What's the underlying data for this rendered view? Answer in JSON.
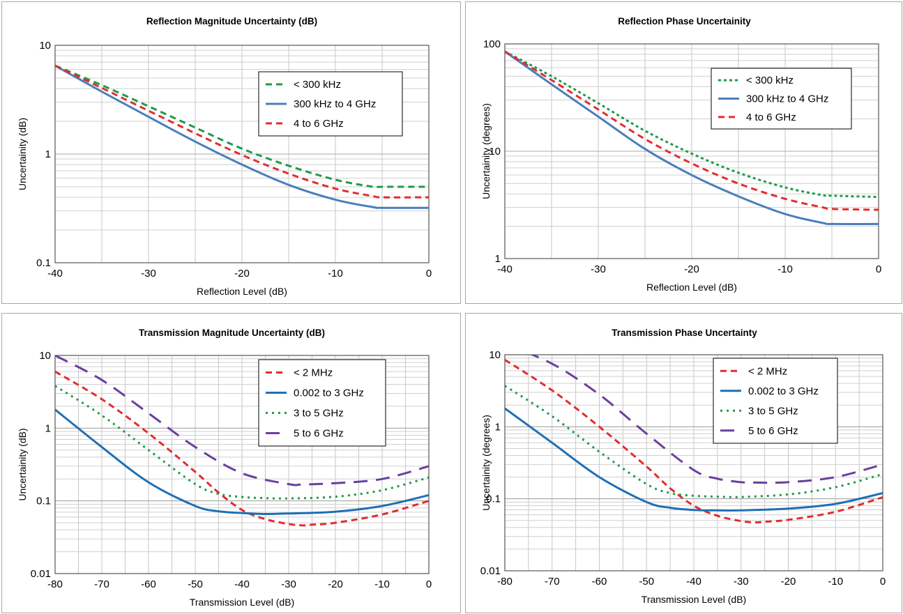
{
  "chart_data": [
    {
      "type": "line",
      "title": "Reflection Magnitude Uncertainty (dB)",
      "xlabel": "Reflection Level (dB)",
      "ylabel": "Uncertainity (dB)",
      "xlim": [
        -40,
        0
      ],
      "ylim": [
        0.1,
        10
      ],
      "yscale": "log",
      "grid": true,
      "legend_position": "upper-right",
      "x_ticks": [
        -40,
        -30,
        -20,
        -10,
        0
      ],
      "y_ticks": [
        0.1,
        1,
        10
      ],
      "x_tick_labels": [
        "-40",
        "-30",
        "-20",
        "-10",
        "0"
      ],
      "y_tick_labels": [
        "0.1",
        "1",
        "10"
      ],
      "series": [
        {
          "name": "< 300 kHz",
          "color": "#1f9a48",
          "dash": "9,6",
          "x": [
            -40,
            -35,
            -30,
            -25,
            -20,
            -15,
            -10,
            -6,
            -5,
            0
          ],
          "y": [
            6.5,
            4.3,
            2.75,
            1.75,
            1.12,
            0.78,
            0.58,
            0.5,
            0.5,
            0.5
          ]
        },
        {
          "name": "300 kHz to 4 GHz",
          "color": "#4a7ebb",
          "dash": "",
          "x": [
            -40,
            -35,
            -30,
            -25,
            -20,
            -15,
            -10,
            -6,
            -5,
            0
          ],
          "y": [
            6.5,
            3.75,
            2.2,
            1.3,
            0.8,
            0.52,
            0.38,
            0.325,
            0.32,
            0.32
          ]
        },
        {
          "name": "4 to 6 GHz",
          "color": "#e32c2c",
          "dash": "9,6",
          "x": [
            -40,
            -35,
            -30,
            -25,
            -20,
            -15,
            -10,
            -6,
            -5,
            0
          ],
          "y": [
            6.5,
            4.05,
            2.5,
            1.55,
            0.98,
            0.66,
            0.48,
            0.41,
            0.4,
            0.4
          ]
        }
      ]
    },
    {
      "type": "line",
      "title": "Reflection Phase Uncertainity",
      "xlabel": "Reflection Level (dB)",
      "ylabel": "Uncertainity (degrees)",
      "xlim": [
        -40,
        0
      ],
      "ylim": [
        1,
        100
      ],
      "yscale": "log",
      "grid": true,
      "legend_position": "upper-right",
      "x_ticks": [
        -40,
        -30,
        -20,
        -10,
        0
      ],
      "y_ticks": [
        1,
        10,
        100
      ],
      "x_tick_labels": [
        "-40",
        "-30",
        "-20",
        "-10",
        "0"
      ],
      "y_tick_labels": [
        "1",
        "10",
        "100"
      ],
      "series": [
        {
          "name": "< 300 kHz",
          "color": "#1f9a48",
          "dash": "4,4",
          "x": [
            -40,
            -35,
            -30,
            -25,
            -20,
            -15,
            -10,
            -6,
            -5,
            0
          ],
          "y": [
            85,
            50,
            28,
            15.5,
            9.5,
            6.3,
            4.6,
            3.9,
            3.85,
            3.75
          ]
        },
        {
          "name": "300 kHz to 4 GHz",
          "color": "#4a7ebb",
          "dash": "",
          "x": [
            -40,
            -35,
            -30,
            -25,
            -20,
            -15,
            -10,
            -6,
            -5,
            0
          ],
          "y": [
            85,
            42,
            21,
            10.5,
            6,
            3.8,
            2.6,
            2.15,
            2.1,
            2.1
          ]
        },
        {
          "name": "4 to 6 GHz",
          "color": "#e32c2c",
          "dash": "9,6",
          "x": [
            -40,
            -35,
            -30,
            -25,
            -20,
            -15,
            -10,
            -6,
            -5,
            0
          ],
          "y": [
            85,
            46,
            24.5,
            13,
            7.7,
            5,
            3.6,
            3,
            2.9,
            2.85
          ]
        }
      ]
    },
    {
      "type": "line",
      "title": "Transmission Magnitude Uncertainty (dB)",
      "xlabel": "Transmission Level (dB)",
      "ylabel": "Uncertainity (dB)",
      "xlim": [
        -80,
        0
      ],
      "ylim": [
        0.01,
        10
      ],
      "yscale": "log",
      "grid": true,
      "legend_position": "upper-right",
      "x_ticks": [
        -80,
        -70,
        -60,
        -50,
        -40,
        -30,
        -20,
        -10,
        0
      ],
      "y_ticks": [
        0.01,
        0.1,
        1,
        10
      ],
      "x_tick_labels": [
        "-80",
        "-70",
        "-60",
        "-50",
        "-40",
        "-30",
        "-20",
        "-10",
        "0"
      ],
      "y_tick_labels": [
        "0.01",
        "0.1",
        "1",
        "10"
      ],
      "series": [
        {
          "name": "< 2 MHz",
          "color": "#e32c2c",
          "dash": "9,6",
          "x": [
            -80,
            -70,
            -60,
            -50,
            -45,
            -40,
            -35,
            -30,
            -27,
            -25,
            -20,
            -10,
            0
          ],
          "y": [
            6,
            2.5,
            0.85,
            0.25,
            0.13,
            0.075,
            0.056,
            0.048,
            0.046,
            0.047,
            0.05,
            0.065,
            0.1
          ]
        },
        {
          "name": "0.002 to 3 GHz",
          "color": "#1f6fb4",
          "dash": "",
          "x": [
            -80,
            -70,
            -60,
            -50,
            -45,
            -40,
            -35,
            -30,
            -20,
            -10,
            0
          ],
          "y": [
            1.8,
            0.55,
            0.18,
            0.085,
            0.072,
            0.068,
            0.066,
            0.067,
            0.071,
            0.085,
            0.12
          ]
        },
        {
          "name": "3 to 5 GHz",
          "color": "#1f9a48",
          "dash": "3,6",
          "x": [
            -80,
            -70,
            -60,
            -50,
            -45,
            -40,
            -35,
            -30,
            -20,
            -10,
            0
          ],
          "y": [
            3.8,
            1.5,
            0.5,
            0.17,
            0.125,
            0.113,
            0.109,
            0.108,
            0.114,
            0.14,
            0.21
          ]
        },
        {
          "name": "5 to 6 GHz",
          "color": "#6a3f9e",
          "dash": "20,12",
          "x": [
            -80,
            -70,
            -60,
            -50,
            -40,
            -30,
            -27,
            -20,
            -10,
            0
          ],
          "y": [
            10,
            4.6,
            1.6,
            0.55,
            0.24,
            0.17,
            0.168,
            0.175,
            0.2,
            0.3
          ]
        }
      ]
    },
    {
      "type": "line",
      "title": "Transmission Phase Uncertainty",
      "xlabel": "Transmission Level (dB)",
      "ylabel": "Uncertainity (degrees)",
      "xlim": [
        -80,
        0
      ],
      "ylim": [
        0.01,
        10
      ],
      "yscale": "log",
      "grid": true,
      "legend_position": "upper-right",
      "x_ticks": [
        -80,
        -70,
        -60,
        -50,
        -40,
        -30,
        -20,
        -10,
        0
      ],
      "y_ticks": [
        0.01,
        0.1,
        1,
        10
      ],
      "x_tick_labels": [
        "-80",
        "-70",
        "-60",
        "-50",
        "-40",
        "-30",
        "-20",
        "-10",
        "0"
      ],
      "y_tick_labels": [
        "0.01",
        "0.1",
        "1",
        "10"
      ],
      "series": [
        {
          "name": "< 2 MHz",
          "color": "#e32c2c",
          "dash": "9,6",
          "x": [
            -80,
            -70,
            -60,
            -50,
            -45,
            -40,
            -35,
            -30,
            -27,
            -25,
            -20,
            -10,
            0
          ],
          "y": [
            8.5,
            3.2,
            1.0,
            0.28,
            0.14,
            0.08,
            0.058,
            0.049,
            0.047,
            0.048,
            0.051,
            0.066,
            0.105
          ]
        },
        {
          "name": "0.002 to 3 GHz",
          "color": "#1f6fb4",
          "dash": "",
          "x": [
            -80,
            -70,
            -60,
            -50,
            -45,
            -40,
            -35,
            -30,
            -20,
            -10,
            0
          ],
          "y": [
            1.8,
            0.6,
            0.2,
            0.09,
            0.075,
            0.07,
            0.069,
            0.069,
            0.073,
            0.085,
            0.12
          ]
        },
        {
          "name": "3 to 5 GHz",
          "color": "#1f9a48",
          "dash": "3,6",
          "x": [
            -80,
            -70,
            -60,
            -50,
            -45,
            -40,
            -35,
            -30,
            -20,
            -10,
            0
          ],
          "y": [
            3.7,
            1.4,
            0.45,
            0.16,
            0.12,
            0.11,
            0.107,
            0.106,
            0.115,
            0.145,
            0.22
          ]
        },
        {
          "name": "5 to 6 GHz",
          "color": "#6a3f9e",
          "dash": "20,12",
          "x": [
            -80,
            -70,
            -60,
            -50,
            -40,
            -35,
            -30,
            -27,
            -20,
            -10,
            0
          ],
          "y": [
            14,
            7.5,
            2.8,
            0.8,
            0.25,
            0.19,
            0.17,
            0.168,
            0.17,
            0.2,
            0.3
          ]
        }
      ]
    }
  ]
}
